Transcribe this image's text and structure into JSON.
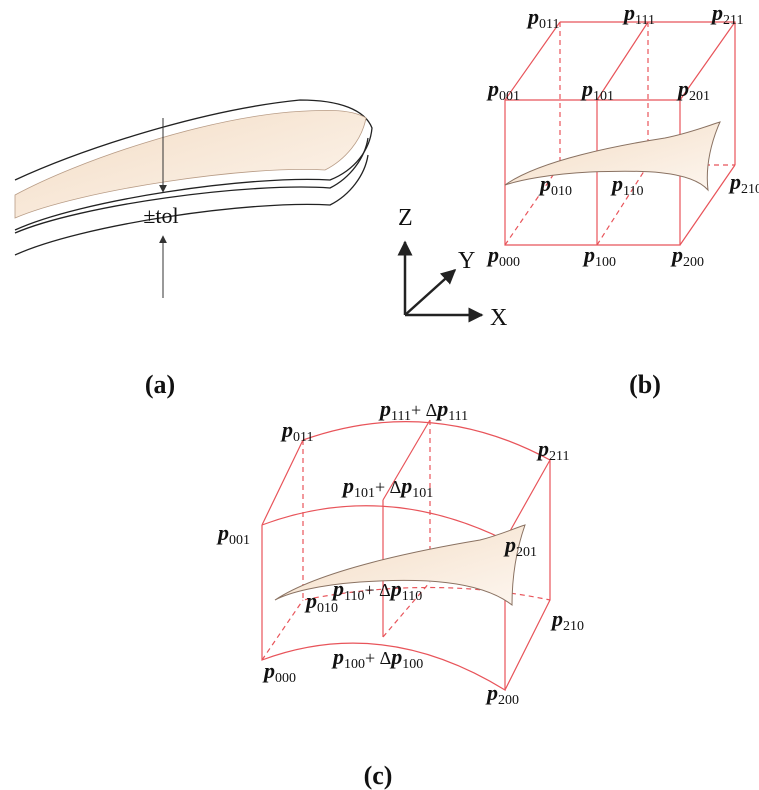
{
  "panels": {
    "a": {
      "label": "(a)",
      "annotation": "±tol"
    },
    "b": {
      "label": "(b)",
      "points": [
        "p011",
        "p111",
        "p211",
        "p001",
        "p101",
        "p201",
        "p010",
        "p110",
        "p210",
        "p000",
        "p100",
        "p200"
      ],
      "axes": [
        "Z",
        "Y",
        "X"
      ]
    },
    "c": {
      "label": "(c)",
      "points": [
        "p011",
        "p111+ Δp111",
        "p211",
        "p001",
        "p101+ Δp101",
        "p201",
        "p010",
        "p110+ Δp110",
        "p210",
        "p000",
        "p100+ Δp100",
        "p200"
      ]
    }
  }
}
